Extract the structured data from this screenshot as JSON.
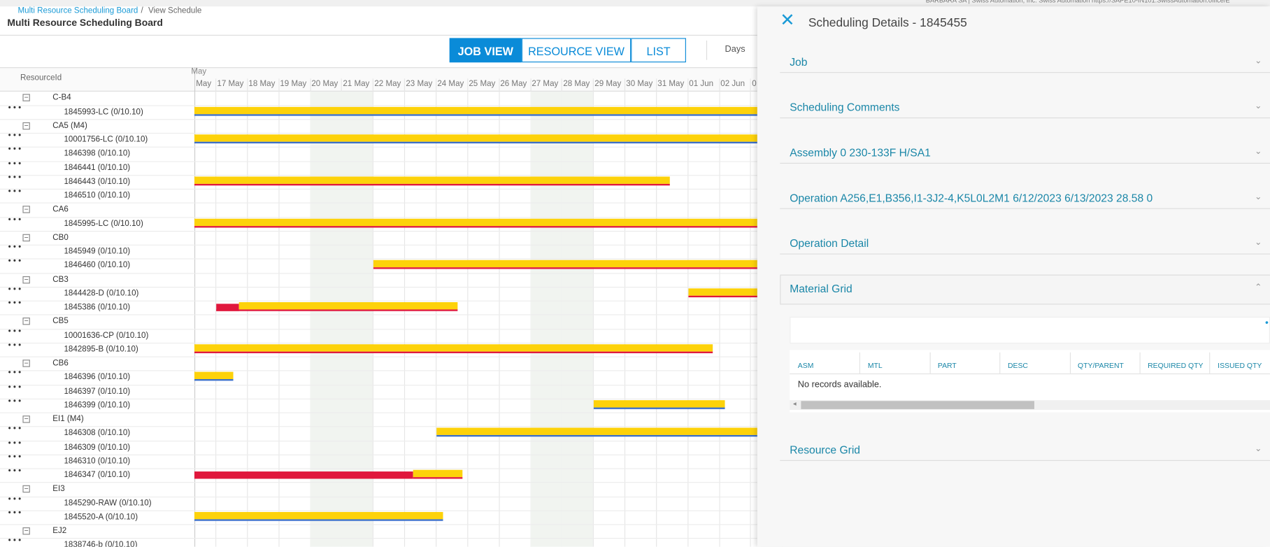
{
  "top_bar": {
    "user_info": "BARBARA SA | Swiss Automation, Inc. Swiss Automation https://SAPE10-IN101.SwissAutomation.office/E"
  },
  "breadcrumb": {
    "link": "Multi Resource Scheduling Board",
    "separator": "/",
    "current": "View Schedule"
  },
  "header": {
    "title": "Multi Resource Scheduling Board"
  },
  "view_buttons": [
    "JOB VIEW",
    "RESOURCE VIEW",
    "LIST"
  ],
  "scale_label": "Days",
  "grid": {
    "column_header": "ResourceId",
    "month_label": "May",
    "dates": [
      "May",
      "17 May",
      "18 May",
      "19 May",
      "20 May",
      "21 May",
      "22 May",
      "23 May",
      "24 May",
      "25 May",
      "26 May",
      "27 May",
      "28 May",
      "29 May",
      "30 May",
      "31 May",
      "01 Jun",
      "02 Jun",
      "0"
    ],
    "rows": [
      {
        "label": "C-B4",
        "group": true
      },
      {
        "label": "1845993-LC (0/10.10)",
        "group": false
      },
      {
        "label": "CA5 (M4)",
        "group": true
      },
      {
        "label": "10001756-LC (0/10.10)",
        "group": false
      },
      {
        "label": "1846398 (0/10.10)",
        "group": false
      },
      {
        "label": "1846441 (0/10.10)",
        "group": false
      },
      {
        "label": "1846443 (0/10.10)",
        "group": false
      },
      {
        "label": "1846510 (0/10.10)",
        "group": false
      },
      {
        "label": "CA6",
        "group": true
      },
      {
        "label": "1845995-LC (0/10.10)",
        "group": false
      },
      {
        "label": "CB0",
        "group": true
      },
      {
        "label": "1845949 (0/10.10)",
        "group": false
      },
      {
        "label": "1846460 (0/10.10)",
        "group": false
      },
      {
        "label": "CB3",
        "group": true
      },
      {
        "label": "1844428-D (0/10.10)",
        "group": false
      },
      {
        "label": "1845386 (0/10.10)",
        "group": false
      },
      {
        "label": "CB5",
        "group": true
      },
      {
        "label": "10001636-CP (0/10.10)",
        "group": false
      },
      {
        "label": "1842895-B (0/10.10)",
        "group": false
      },
      {
        "label": "CB6",
        "group": true
      },
      {
        "label": "1846396 (0/10.10)",
        "group": false
      },
      {
        "label": "1846397 (0/10.10)",
        "group": false
      },
      {
        "label": "1846399 (0/10.10)",
        "group": false
      },
      {
        "label": "EI1 (M4)",
        "group": true
      },
      {
        "label": "1846308 (0/10.10)",
        "group": false
      },
      {
        "label": "1846309 (0/10.10)",
        "group": false
      },
      {
        "label": "1846310 (0/10.10)",
        "group": false
      },
      {
        "label": "1846347 (0/10.10)",
        "group": false
      },
      {
        "label": "EI3",
        "group": true
      },
      {
        "label": "1845290-RAW (0/10.10)",
        "group": false
      },
      {
        "label": "1845520-A (0/10.10)",
        "group": false
      },
      {
        "label": "EJ2",
        "group": true
      },
      {
        "label": "1838746-b (0/10.10)",
        "group": false
      }
    ]
  },
  "panel": {
    "title": "Scheduling Details - 1845455",
    "sections": [
      {
        "title": "Job"
      },
      {
        "title": "Scheduling Comments"
      },
      {
        "title": "Assembly 0 230-133F H/SA1"
      },
      {
        "title": "Operation A256,E1,B356,I1-3J2-4,K5L0L2M1 6/12/2023 6/13/2023 28.58 0"
      },
      {
        "title": "Operation Detail"
      },
      {
        "title": "Material Grid",
        "expanded": true,
        "columns": [
          "ASM",
          "MTL",
          "PART",
          "DESC",
          "QTY/PARENT",
          "REQUIRED QTY",
          "ISSUED QTY"
        ],
        "empty_message": "No records available."
      },
      {
        "title": "Resource Grid"
      }
    ]
  }
}
